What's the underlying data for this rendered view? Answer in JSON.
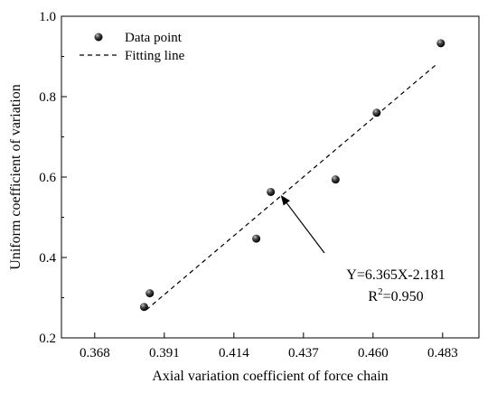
{
  "chart_data": {
    "type": "scatter",
    "xlabel": "Axial variation coefficient of force chain",
    "ylabel": "Uniform coefficient of variation",
    "xlim": [
      0.357,
      0.495
    ],
    "ylim": [
      0.2,
      1.0
    ],
    "x_ticks": [
      0.368,
      0.391,
      0.414,
      0.437,
      0.46,
      0.483
    ],
    "x_tick_labels": [
      "0.368",
      "0.391",
      "0.414",
      "0.437",
      "0.460",
      "0.483"
    ],
    "y_ticks": [
      0.2,
      0.4,
      0.6,
      0.8,
      1.0
    ],
    "y_tick_labels": [
      "0.2",
      "0.4",
      "0.6",
      "0.8",
      "1.0"
    ],
    "grid": false,
    "legend_position": "top-left",
    "legend": [
      {
        "label": "Data point",
        "kind": "marker"
      },
      {
        "label": "Fitting line",
        "kind": "dashed-line"
      }
    ],
    "series": [
      {
        "kind": "points",
        "x": [
          0.3843,
          0.3862,
          0.4214,
          0.4262,
          0.4476,
          0.4612,
          0.4824
        ],
        "y": [
          0.277,
          0.311,
          0.447,
          0.563,
          0.594,
          0.76,
          0.933
        ]
      },
      {
        "kind": "fit-line",
        "slope": 6.365,
        "intercept": -2.181,
        "x_range": [
          0.385,
          0.481
        ]
      }
    ],
    "annotation": {
      "equation": "Y=6.365X-2.181",
      "r2_prefix": "R",
      "r2_sup": "2",
      "r2_value": "=0.950",
      "arrow_target": {
        "x": 0.4295,
        "y": 0.555
      }
    },
    "colors": {
      "marker": "#111111",
      "line": "#000000"
    }
  }
}
